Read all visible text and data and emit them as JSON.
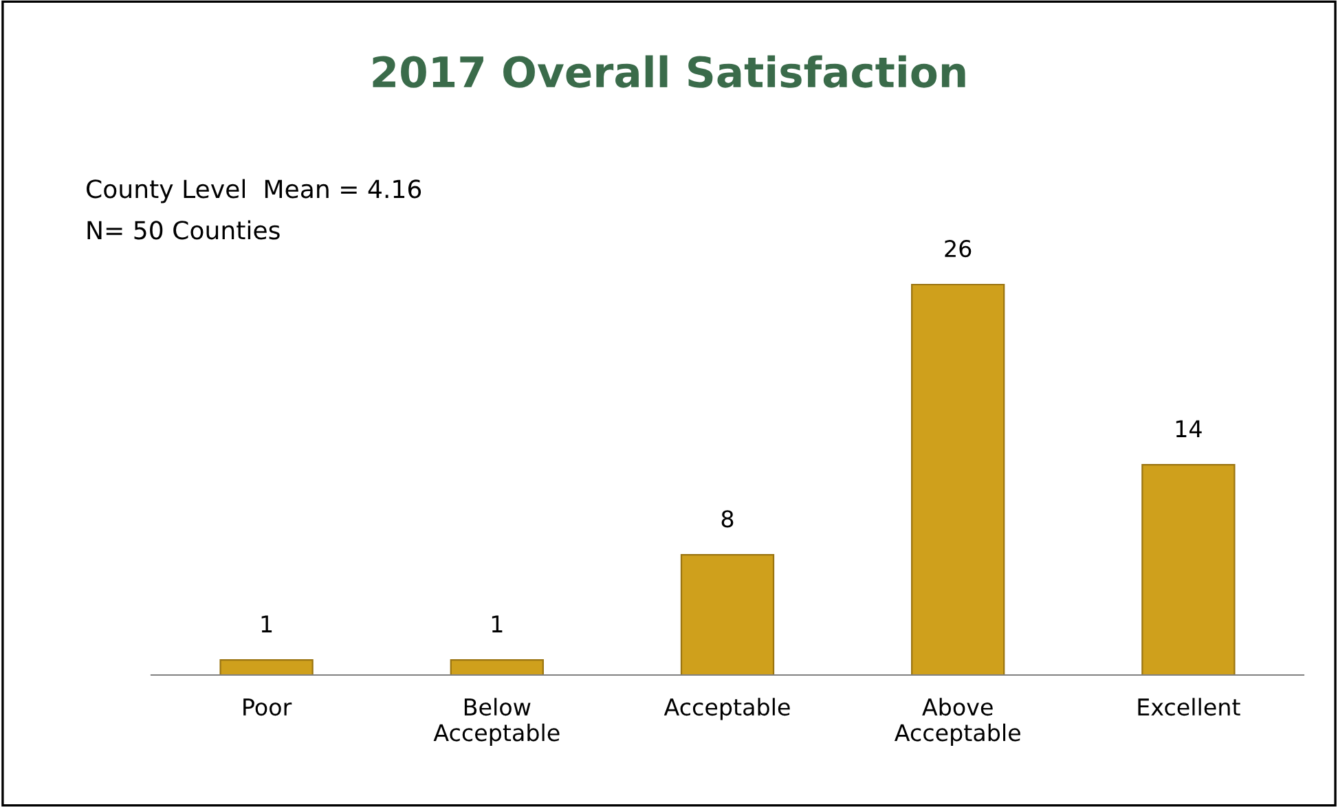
{
  "chart_data": {
    "type": "bar",
    "title": "2017 Overall Satisfaction",
    "categories": [
      "Poor",
      "Below\nAcceptable",
      "Acceptable",
      "Above\nAcceptable",
      "Excellent"
    ],
    "values": [
      1,
      1,
      8,
      26,
      14
    ],
    "color": "#cfa01c",
    "data_labels": true,
    "grid": false,
    "legend": false,
    "annotations": [
      "County Level  Mean = 4.16",
      "N= 50 Counties"
    ]
  }
}
